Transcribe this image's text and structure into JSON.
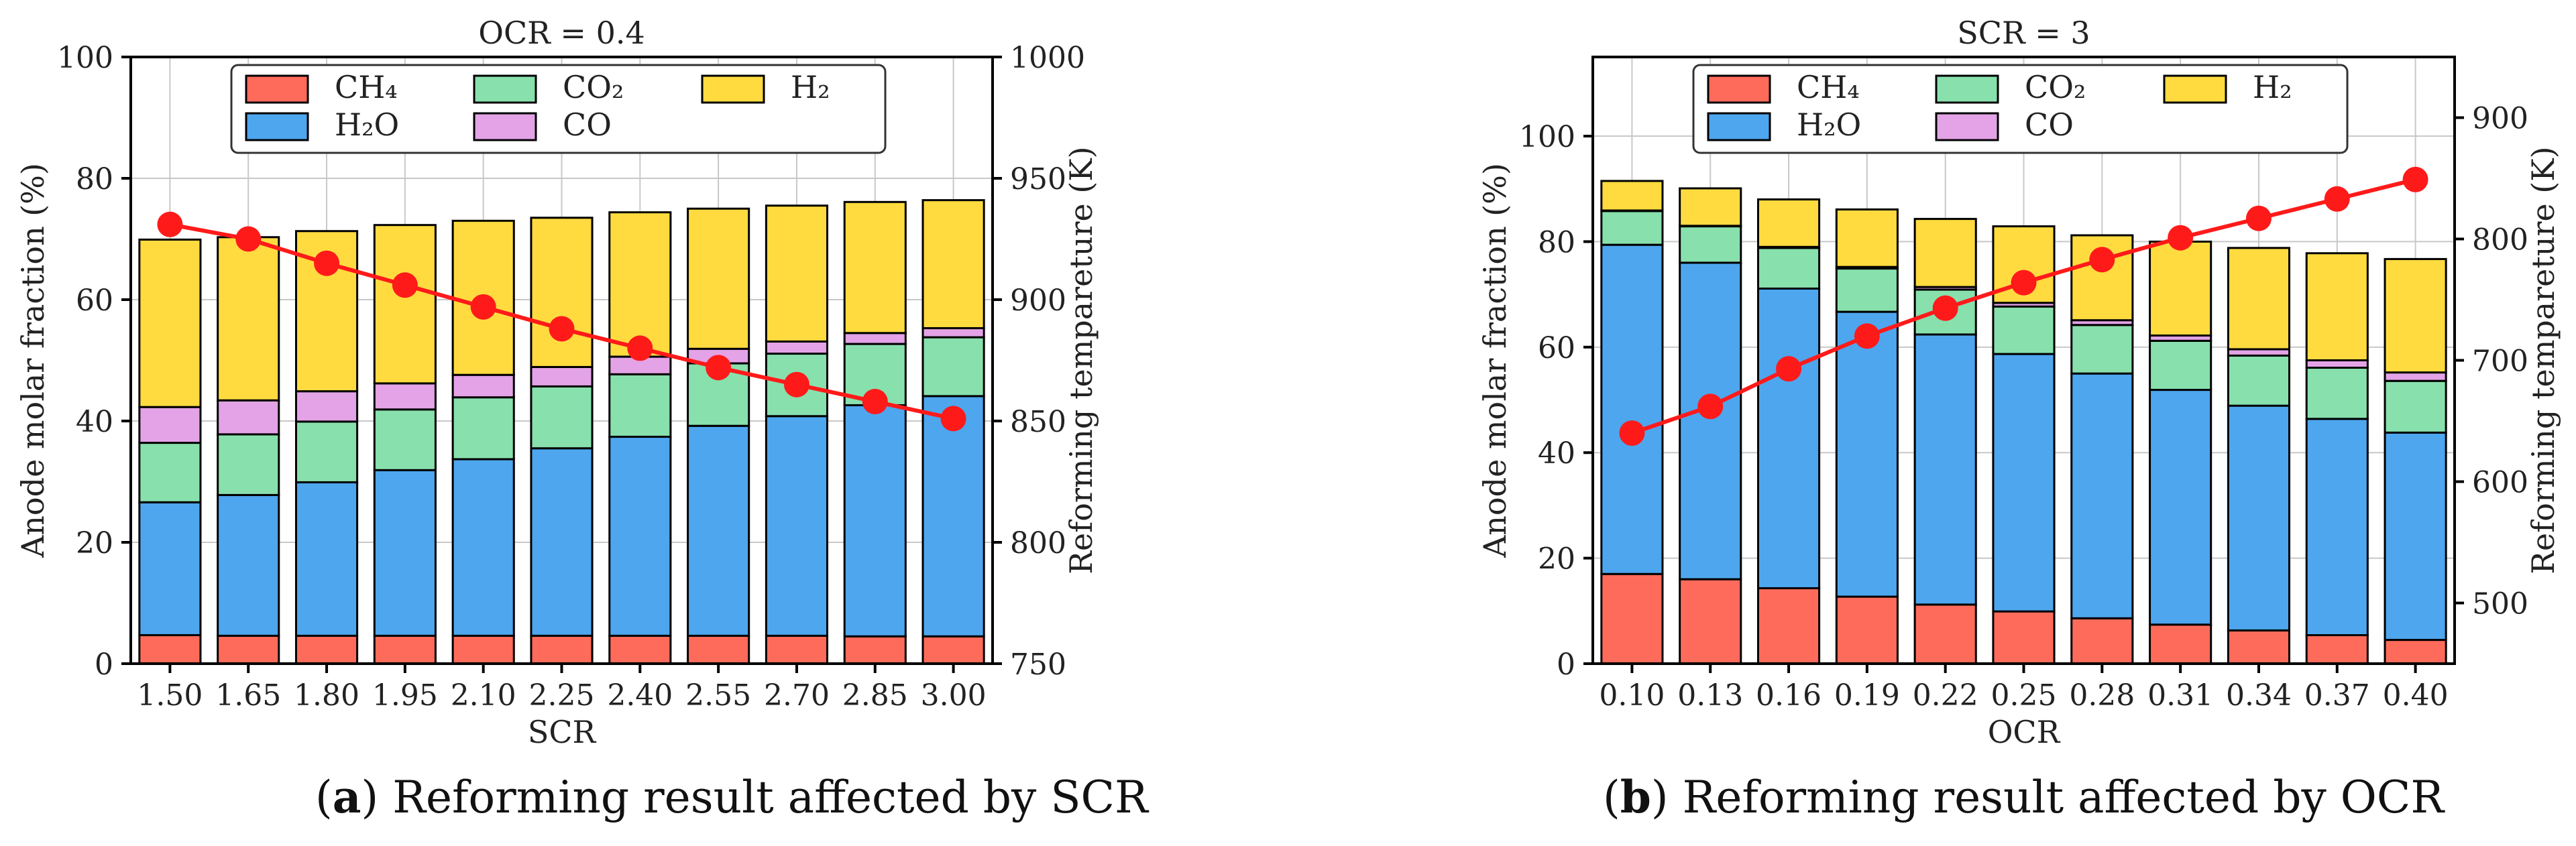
{
  "legend": {
    "entries": [
      {
        "label": "CH₄",
        "color": "#ff6b5b"
      },
      {
        "label": "CO₂",
        "color": "#88e0ad"
      },
      {
        "label": "H₂",
        "color": "#ffdb3f"
      },
      {
        "label": "H₂O",
        "color": "#4ea6ee"
      },
      {
        "label": "CO",
        "color": "#e3a3e6"
      }
    ]
  },
  "captions": [
    {
      "letter": "a",
      "text": ") Reforming result affected by SCR",
      "open": "("
    },
    {
      "letter": "b",
      "text": ") Reforming result affected by OCR",
      "open": "("
    }
  ],
  "chart_data": [
    {
      "type": "bar",
      "stacked": true,
      "title": "OCR = 0.4",
      "xlabel": "SCR",
      "ylabel": "Anode molar fraction (%)",
      "y2label": "Reforming tempareture (K)",
      "ylim": [
        0,
        100
      ],
      "yticks": [
        0,
        20,
        40,
        60,
        80,
        100
      ],
      "y2lim": [
        750,
        1000
      ],
      "y2ticks": [
        750,
        800,
        850,
        900,
        950,
        1000
      ],
      "grid": true,
      "legend_position": "top",
      "categories": [
        "1.50",
        "1.65",
        "1.80",
        "1.95",
        "2.10",
        "2.25",
        "2.40",
        "2.55",
        "2.70",
        "2.85",
        "3.00"
      ],
      "series": [
        {
          "name": "CH₄",
          "color": "#ff6b5b",
          "values": [
            4.7,
            4.6,
            4.6,
            4.6,
            4.6,
            4.6,
            4.6,
            4.6,
            4.6,
            4.5,
            4.5
          ]
        },
        {
          "name": "H₂O",
          "color": "#4ea6ee",
          "values": [
            21.9,
            23.2,
            25.3,
            27.3,
            29.1,
            30.9,
            32.8,
            34.6,
            36.2,
            38.1,
            39.6
          ]
        },
        {
          "name": "CO₂",
          "color": "#88e0ad",
          "values": [
            9.8,
            10.0,
            10.0,
            10.0,
            10.2,
            10.2,
            10.3,
            10.3,
            10.3,
            10.1,
            9.7
          ]
        },
        {
          "name": "CO",
          "color": "#e3a3e6",
          "values": [
            5.9,
            5.6,
            5.0,
            4.3,
            3.7,
            3.2,
            2.9,
            2.4,
            2.0,
            1.8,
            1.5
          ]
        },
        {
          "name": "H₂",
          "color": "#ffdb3f",
          "values": [
            27.6,
            26.9,
            26.4,
            26.1,
            25.4,
            24.6,
            23.8,
            23.1,
            22.4,
            21.6,
            21.1
          ]
        }
      ],
      "temperature": {
        "color": "#ff1a1a",
        "values": [
          931,
          925,
          915,
          906,
          897,
          888,
          880,
          872,
          865,
          858,
          851
        ]
      }
    },
    {
      "type": "bar",
      "stacked": true,
      "title": "SCR = 3",
      "xlabel": "OCR",
      "ylabel": "Anode molar fraction (%)",
      "y2label": "Reforming tempareture (K)",
      "ylim": [
        0,
        115
      ],
      "yticks": [
        0,
        20,
        40,
        60,
        80,
        100
      ],
      "y2lim": [
        450,
        950
      ],
      "y2ticks": [
        500,
        600,
        700,
        800,
        900
      ],
      "grid": true,
      "legend_position": "top",
      "categories": [
        "0.10",
        "0.13",
        "0.16",
        "0.19",
        "0.22",
        "0.25",
        "0.28",
        "0.31",
        "0.34",
        "0.37",
        "0.40"
      ],
      "series": [
        {
          "name": "CH₄",
          "color": "#ff6b5b",
          "values": [
            17.0,
            16.0,
            14.3,
            12.7,
            11.2,
            9.9,
            8.6,
            7.4,
            6.3,
            5.4,
            4.5
          ]
        },
        {
          "name": "H₂O",
          "color": "#4ea6ee",
          "values": [
            62.4,
            60.0,
            56.8,
            54.0,
            51.2,
            48.8,
            46.4,
            44.5,
            42.6,
            41.0,
            39.3
          ]
        },
        {
          "name": "CO₂",
          "color": "#88e0ad",
          "values": [
            6.4,
            6.9,
            7.7,
            8.2,
            8.5,
            9.0,
            9.2,
            9.3,
            9.5,
            9.7,
            9.8
          ]
        },
        {
          "name": "CO",
          "color": "#e3a3e6",
          "values": [
            0.1,
            0.1,
            0.2,
            0.3,
            0.5,
            0.7,
            0.9,
            1.0,
            1.2,
            1.4,
            1.6
          ]
        },
        {
          "name": "H₂",
          "color": "#ffdb3f",
          "values": [
            5.6,
            7.1,
            9.0,
            10.9,
            12.9,
            14.5,
            16.1,
            17.8,
            19.2,
            20.3,
            21.5
          ]
        }
      ],
      "temperature": {
        "color": "#ff1a1a",
        "values": [
          640,
          662,
          693,
          720,
          743,
          764,
          783,
          801,
          817,
          833,
          849
        ]
      }
    }
  ]
}
